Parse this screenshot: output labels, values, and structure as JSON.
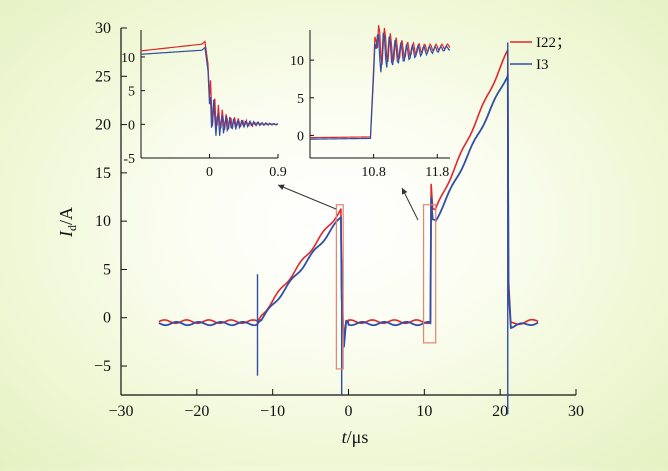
{
  "chart_data": {
    "type": "line",
    "title": "",
    "xlabel_base": "t",
    "xlabel_unit": "/μs",
    "ylabel_base": "I",
    "ylabel_sub": "d",
    "ylabel_unit": "/A",
    "xlim": [
      -30,
      30
    ],
    "ylim": [
      -8,
      30
    ],
    "xticks": [
      -30,
      -20,
      -10,
      0,
      10,
      20,
      30
    ],
    "yticks": [
      -5,
      0,
      5,
      10,
      15,
      20,
      25,
      30
    ],
    "legend": [
      {
        "name": "I22；",
        "color": "#e0262b"
      },
      {
        "name": "I3",
        "color": "#2f4ea8"
      }
    ],
    "series": [
      {
        "name": "I22",
        "color": "#e0262b",
        "x": [
          -25,
          -12,
          -11.5,
          -1,
          -0.9,
          -0.6,
          -0.3,
          0,
          10.8,
          10.9,
          11.1,
          11.5,
          21,
          21.1,
          21.4,
          25
        ],
        "y": [
          -0.4,
          -0.4,
          0.2,
          11.2,
          3,
          -2,
          -0.3,
          -0.4,
          -0.4,
          13.8,
          11.3,
          11.2,
          27.6,
          4,
          -0.6,
          -0.3
        ]
      },
      {
        "name": "I3",
        "color": "#2f4ea8",
        "x": [
          -25,
          -12,
          -11.5,
          -1,
          -0.9,
          -0.6,
          -0.3,
          0,
          10.8,
          10.9,
          11.1,
          11.5,
          21,
          21.1,
          21.4,
          25
        ],
        "y": [
          -0.6,
          -0.6,
          -0.2,
          10.4,
          2,
          -3,
          -0.3,
          -0.6,
          -0.6,
          12.4,
          10.2,
          10.1,
          25.2,
          3,
          -0.9,
          -0.5
        ]
      }
    ],
    "insets": [
      {
        "name": "inset-left",
        "xlim": [
          -0.9,
          0.9
        ],
        "ylim": [
          -5,
          14
        ],
        "xticks": [
          "0",
          "0.9"
        ],
        "xtick_values": [
          0,
          0.9
        ],
        "yticks": [
          "-5",
          "0",
          "5",
          "10"
        ],
        "ytick_values": [
          -5,
          0,
          5,
          10
        ],
        "series": [
          {
            "name": "I22",
            "color": "#e0262b",
            "x": [
              -0.9,
              -0.1,
              -0.06,
              -0.02,
              0.0,
              0.04,
              0.1,
              0.2,
              0.3,
              0.5,
              0.9
            ],
            "y": [
              10.9,
              11.9,
              12.3,
              9.0,
              4.0,
              2.5,
              1.0,
              0.5,
              0.3,
              0.1,
              0.0
            ]
          },
          {
            "name": "I3",
            "color": "#2f4ea8",
            "x": [
              -0.9,
              -0.1,
              -0.06,
              -0.02,
              0.0,
              0.04,
              0.1,
              0.2,
              0.3,
              0.5,
              0.9
            ],
            "y": [
              10.4,
              11.0,
              11.4,
              8.0,
              3.0,
              1.5,
              0.2,
              -0.1,
              0.0,
              0.1,
              0.0
            ]
          }
        ]
      },
      {
        "name": "inset-right",
        "xlim": [
          9.8,
          12.0
        ],
        "ylim": [
          -3,
          14
        ],
        "xticks": [
          "10.8",
          "11.8"
        ],
        "xtick_values": [
          10.8,
          11.8
        ],
        "yticks": [
          "0",
          "5",
          "10"
        ],
        "ytick_values": [
          0,
          5,
          10
        ],
        "series": [
          {
            "name": "I22",
            "color": "#e0262b",
            "x": [
              9.8,
              10.75,
              10.8,
              10.82,
              10.86,
              10.95,
              11.1,
              11.3,
              11.5,
              11.8,
              12.0
            ],
            "y": [
              -0.3,
              -0.2,
              9.0,
              13.1,
              11.8,
              12.0,
              11.4,
              11.3,
              11.5,
              11.7,
              11.9
            ]
          },
          {
            "name": "I3",
            "color": "#2f4ea8",
            "x": [
              9.8,
              10.75,
              10.8,
              10.82,
              10.86,
              10.95,
              11.1,
              11.3,
              11.5,
              11.8,
              12.0
            ],
            "y": [
              -0.5,
              -0.4,
              8.0,
              12.2,
              10.8,
              11.4,
              11.0,
              10.9,
              11.2,
              11.4,
              11.6
            ]
          }
        ]
      }
    ],
    "highlight_boxes": [
      {
        "name": "zoom-box-left",
        "x": [
          -1.6,
          -0.7
        ],
        "y": [
          -5.3,
          11.7
        ]
      },
      {
        "name": "zoom-box-right",
        "x": [
          9.9,
          11.5
        ],
        "y": [
          -2.6,
          11.7
        ]
      }
    ]
  }
}
